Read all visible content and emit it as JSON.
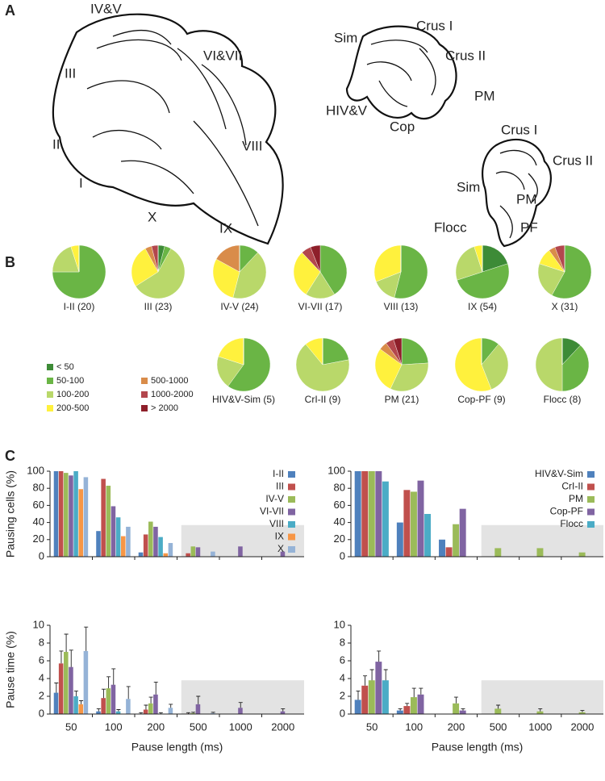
{
  "panel_labels": [
    "A",
    "B",
    "C"
  ],
  "diagram_labels": [
    "IV&V",
    "VI&VII",
    "III",
    "II",
    "VIII",
    "I",
    "X",
    "IX",
    "Sim",
    "Crus I",
    "Crus II",
    "PM",
    "HIV&V",
    "Cop",
    "Crus I",
    "Crus II",
    "Sim",
    "PM",
    "Flocc",
    "PF"
  ],
  "pie_legend": {
    "labels": [
      "< 50",
      "50-100",
      "100-200",
      "200-500",
      "500-1000",
      "1000-2000",
      "> 2000"
    ],
    "colors": [
      "#3d8b37",
      "#6ab545",
      "#b9d86a",
      "#fff13d",
      "#d98c4a",
      "#b3474d",
      "#8e1f2a"
    ]
  },
  "chart_data": [
    {
      "type": "pie",
      "title": "I-II (20)",
      "values": [
        0,
        75,
        20,
        5,
        0,
        0,
        0
      ]
    },
    {
      "type": "pie",
      "title": "III (23)",
      "values": [
        4,
        4,
        58,
        26,
        4,
        4,
        0
      ]
    },
    {
      "type": "pie",
      "title": "IV-V (24)",
      "values": [
        0,
        12,
        42,
        29,
        17,
        0,
        0
      ]
    },
    {
      "type": "pie",
      "title": "VI-VII (17)",
      "values": [
        0,
        41,
        18,
        29,
        0,
        6,
        6
      ]
    },
    {
      "type": "pie",
      "title": "VIII (13)",
      "values": [
        0,
        54,
        15,
        31,
        0,
        0,
        0
      ]
    },
    {
      "type": "pie",
      "title": "IX (54)",
      "values": [
        20,
        50,
        25,
        5,
        0,
        0,
        0
      ]
    },
    {
      "type": "pie",
      "title": "X (31)",
      "values": [
        0,
        58,
        22,
        10,
        4,
        6,
        0
      ]
    },
    {
      "type": "pie",
      "title": "HIV&V-Sim (5)",
      "values": [
        0,
        60,
        20,
        20,
        0,
        0,
        0
      ]
    },
    {
      "type": "pie",
      "title": "CrI-II (9)",
      "values": [
        0,
        22,
        67,
        11,
        0,
        0,
        0
      ]
    },
    {
      "type": "pie",
      "title": "PM (21)",
      "values": [
        0,
        24,
        33,
        28,
        5,
        5,
        5
      ]
    },
    {
      "type": "pie",
      "title": "Cop-PF (9)",
      "values": [
        0,
        11,
        33,
        56,
        0,
        0,
        0
      ]
    },
    {
      "type": "pie",
      "title": "Flocc (8)",
      "values": [
        12,
        38,
        50,
        0,
        0,
        0,
        0
      ]
    },
    {
      "type": "bar",
      "ylabel": "Pausing cells (%)",
      "ylim": [
        0,
        100
      ],
      "yticks": [
        0,
        20,
        40,
        60,
        80,
        100
      ],
      "legend": "upper right",
      "shaded_region": {
        "start_index": 3,
        "top": 37
      },
      "series": [
        {
          "name": "I-II",
          "color": "#4f81bd",
          "values": [
            100,
            30,
            5,
            0,
            0,
            0
          ]
        },
        {
          "name": "III",
          "color": "#c0504d",
          "values": [
            100,
            91,
            26,
            4,
            0,
            0
          ]
        },
        {
          "name": "IV-V",
          "color": "#9bbb59",
          "values": [
            98,
            83,
            41,
            12,
            0,
            0
          ]
        },
        {
          "name": "VI-VII",
          "color": "#8064a2",
          "values": [
            95,
            59,
            35,
            11,
            12,
            6
          ]
        },
        {
          "name": "VIII",
          "color": "#4bacc6",
          "values": [
            100,
            46,
            23,
            0,
            0,
            0
          ]
        },
        {
          "name": "IX",
          "color": "#f79646",
          "values": [
            79,
            24,
            4,
            0,
            0,
            0
          ]
        },
        {
          "name": "X",
          "color": "#95b3d7",
          "values": [
            93,
            35,
            16,
            6,
            0,
            0
          ]
        }
      ]
    },
    {
      "type": "bar",
      "ylim": [
        0,
        100
      ],
      "yticks": [
        0,
        20,
        40,
        60,
        80,
        100
      ],
      "legend": "upper right",
      "shaded_region": {
        "start_index": 3,
        "top": 37
      },
      "series": [
        {
          "name": "HIV&V-Sim",
          "color": "#4f81bd",
          "values": [
            100,
            40,
            20,
            0,
            0,
            0
          ]
        },
        {
          "name": "CrI-II",
          "color": "#c0504d",
          "values": [
            100,
            78,
            11,
            0,
            0,
            0
          ]
        },
        {
          "name": "PM",
          "color": "#9bbb59",
          "values": [
            100,
            76,
            38,
            10,
            10,
            5
          ]
        },
        {
          "name": "Cop-PF",
          "color": "#8064a2",
          "values": [
            100,
            89,
            56,
            0,
            0,
            0
          ]
        },
        {
          "name": "Flocc",
          "color": "#4bacc6",
          "values": [
            88,
            50,
            0,
            0,
            0,
            0
          ]
        }
      ]
    },
    {
      "type": "bar",
      "ylabel": "Pause time (%)",
      "xlabel": "Pause length (ms)",
      "ylim": [
        0,
        10
      ],
      "yticks": [
        0,
        2,
        4,
        6,
        8,
        10
      ],
      "categories": [
        "50",
        "100",
        "200",
        "500",
        "1000",
        "2000"
      ],
      "shaded_region": {
        "start_index": 3,
        "top": 3.8
      },
      "series": [
        {
          "color": "#4f81bd",
          "values": [
            2.4,
            0.3,
            0.05,
            0,
            0,
            0
          ],
          "errors": [
            1.1,
            0.3,
            0.1,
            0,
            0,
            0
          ]
        },
        {
          "color": "#c0504d",
          "values": [
            5.7,
            1.8,
            0.5,
            0.05,
            0,
            0
          ],
          "errors": [
            1.4,
            1.0,
            0.5,
            0.1,
            0,
            0
          ]
        },
        {
          "color": "#9bbb59",
          "values": [
            7.0,
            2.9,
            1.2,
            0.1,
            0,
            0
          ],
          "errors": [
            2.0,
            1.3,
            0.7,
            0.1,
            0,
            0
          ]
        },
        {
          "color": "#8064a2",
          "values": [
            5.3,
            3.3,
            2.2,
            1.1,
            0.7,
            0.3
          ],
          "errors": [
            1.9,
            1.8,
            1.4,
            0.9,
            0.6,
            0.3
          ]
        },
        {
          "color": "#4bacc6",
          "values": [
            2.0,
            0.3,
            0.05,
            0,
            0,
            0
          ],
          "errors": [
            0.6,
            0.2,
            0.1,
            0,
            0,
            0
          ]
        },
        {
          "color": "#f79646",
          "values": [
            1.1,
            0,
            0,
            0,
            0,
            0
          ],
          "errors": [
            0.4,
            0,
            0,
            0,
            0,
            0
          ]
        },
        {
          "color": "#95b3d7",
          "values": [
            7.1,
            1.7,
            0.7,
            0.1,
            0,
            0
          ],
          "errors": [
            2.7,
            1.4,
            0.4,
            0.1,
            0,
            0
          ]
        }
      ]
    },
    {
      "type": "bar",
      "xlabel": "Pause length (ms)",
      "ylim": [
        0,
        10
      ],
      "yticks": [
        0,
        2,
        4,
        6,
        8,
        10
      ],
      "categories": [
        "50",
        "100",
        "200",
        "500",
        "1000",
        "2000"
      ],
      "shaded_region": {
        "start_index": 3,
        "top": 3.8
      },
      "series": [
        {
          "color": "#4f81bd",
          "values": [
            1.6,
            0.4,
            0,
            0,
            0,
            0
          ],
          "errors": [
            1.0,
            0.2,
            0,
            0,
            0,
            0
          ]
        },
        {
          "color": "#c0504d",
          "values": [
            3.2,
            0.9,
            0,
            0,
            0,
            0
          ],
          "errors": [
            1.1,
            0.3,
            0,
            0,
            0,
            0
          ]
        },
        {
          "color": "#9bbb59",
          "values": [
            3.8,
            1.9,
            1.2,
            0.6,
            0.3,
            0.2
          ],
          "errors": [
            1.2,
            1.0,
            0.7,
            0.4,
            0.3,
            0.2
          ]
        },
        {
          "color": "#8064a2",
          "values": [
            5.9,
            2.2,
            0.4,
            0,
            0,
            0
          ],
          "errors": [
            1.2,
            0.7,
            0.2,
            0,
            0,
            0
          ]
        },
        {
          "color": "#4bacc6",
          "values": [
            3.8,
            0,
            0,
            0,
            0,
            0
          ],
          "errors": [
            1.2,
            0,
            0,
            0,
            0,
            0
          ]
        }
      ]
    }
  ]
}
